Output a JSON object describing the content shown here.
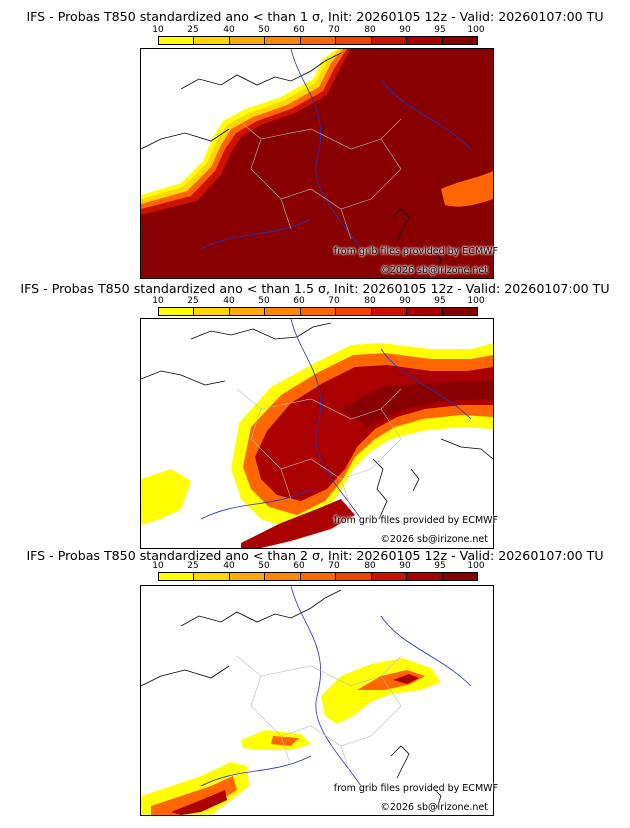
{
  "colorbar": {
    "ticks": [
      "10",
      "25",
      "40",
      "50",
      "60",
      "70",
      "80",
      "90",
      "95",
      "100"
    ],
    "colors": [
      "#ffff00",
      "#ffd700",
      "#ffaa00",
      "#ff8800",
      "#ff6600",
      "#ee4400",
      "#cc1100",
      "#aa0000",
      "#880000",
      "#550000"
    ]
  },
  "land_color": "#ffffff",
  "panels": [
    {
      "title": "IFS - Probas T850  standardized ano < than 1 σ, Init: 20260105 12z - Valid: 20260107:00 TU",
      "credit_source": "from grib files provided by ECMWF",
      "credit_copyright": "©2026 sb@irizone.net"
    },
    {
      "title": "IFS - Probas T850  standardized ano < than 1.5 σ, Init: 20260105 12z - Valid: 20260107:00 TU",
      "credit_source": "from grib files provided by ECMWF",
      "credit_copyright": "©2026 sb@irizone.net"
    },
    {
      "title": "IFS - Probas T850  standardized ano < than 2 σ, Init: 20260105 12z - Valid: 20260107:00 TU",
      "credit_source": "from grib files provided by ECMWF",
      "credit_copyright": "©2026 sb@irizone.net"
    }
  ]
}
